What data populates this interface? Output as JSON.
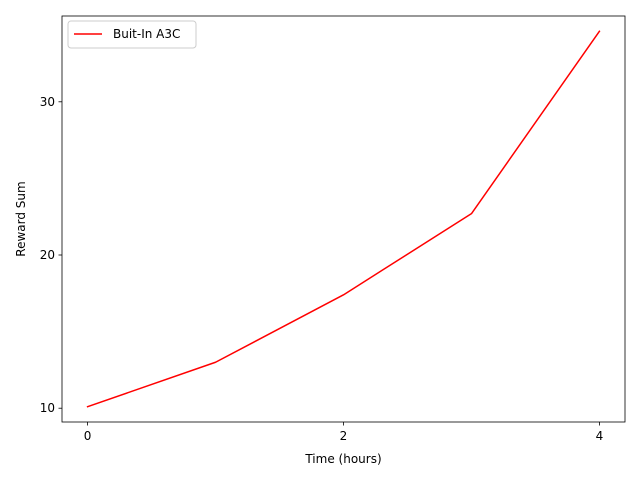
{
  "chart_data": {
    "type": "line",
    "title": "",
    "xlabel": "Time (hours)",
    "ylabel": "Reward Sum",
    "xlim": [
      -0.2,
      4.2
    ],
    "ylim": [
      9.1,
      35.6
    ],
    "xticks": [
      0,
      2,
      4
    ],
    "yticks": [
      10,
      20,
      30
    ],
    "x_tick_labels": [
      "0",
      "2",
      "4"
    ],
    "y_tick_labels": [
      "10",
      "20",
      "30"
    ],
    "grid": false,
    "legend_position": "top-left",
    "series": [
      {
        "name": "Buit-In A3C",
        "color": "#ff0000",
        "x": [
          0,
          1,
          2,
          3,
          4
        ],
        "y": [
          10.1,
          13.0,
          17.4,
          22.7,
          34.6
        ]
      }
    ]
  }
}
